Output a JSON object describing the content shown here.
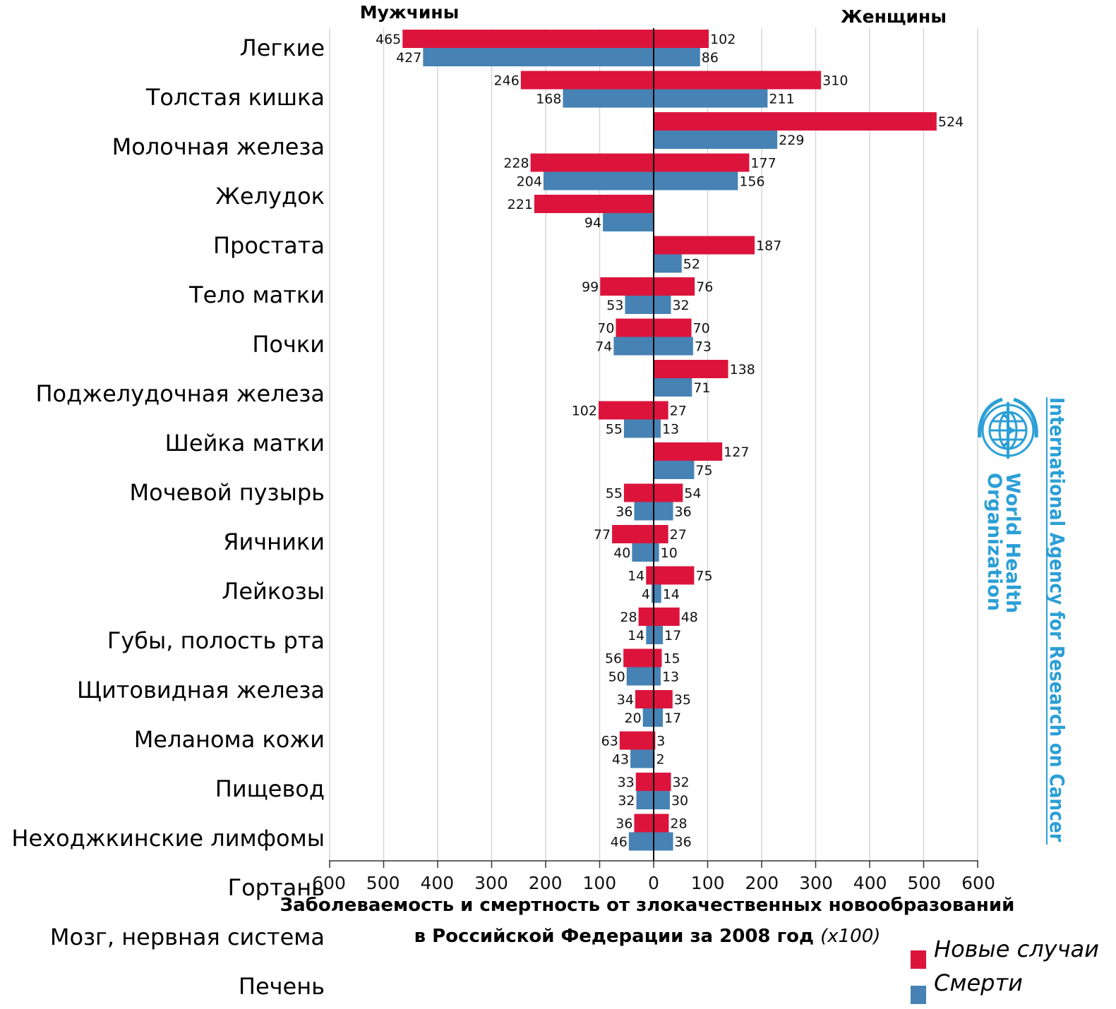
{
  "chart_data": {
    "type": "bar",
    "title_line1": "Заболеваемость и смертность от злокачественных новообразований",
    "title_line2": "в Российской Федерации за 2008 год",
    "title_unit": "(x100)",
    "left_label": "Мужчины",
    "right_label": "Женщины",
    "xlim": [
      -600,
      600
    ],
    "x_ticks": [
      "600",
      "500",
      "400",
      "300",
      "200",
      "100",
      "0",
      "100",
      "200",
      "300",
      "400",
      "500",
      "600"
    ],
    "grid": true,
    "categories": [
      "Легкие",
      "Толстая кишка",
      "Молочная железа",
      "Желудок",
      "Простата",
      "Тело матки",
      "Почки",
      "Поджелудочная железа",
      "Шейка матки",
      "Мочевой пузырь",
      "Яичники",
      "Лейкозы",
      "Губы, полость рта",
      "Щитовидная железа",
      "Меланома кожи",
      "Пищевод",
      "Неходжкинские лимфомы",
      "Гортань",
      "Мозг, нервная система",
      "Печень"
    ],
    "bar_rows": [
      {
        "male_new": 465,
        "male_death": 427,
        "female_new": 102,
        "female_death": 86
      },
      {
        "male_new": 246,
        "male_death": 168,
        "female_new": 310,
        "female_death": 211
      },
      {
        "male_new": null,
        "male_death": null,
        "female_new": 524,
        "female_death": 229
      },
      {
        "male_new": 228,
        "male_death": 204,
        "female_new": 177,
        "female_death": 156
      },
      {
        "male_new": 221,
        "male_death": 94,
        "female_new": null,
        "female_death": null
      },
      {
        "male_new": null,
        "male_death": null,
        "female_new": 187,
        "female_death": 52
      },
      {
        "male_new": 99,
        "male_death": 53,
        "female_new": 76,
        "female_death": 32
      },
      {
        "male_new": 70,
        "male_death": 74,
        "female_new": 70,
        "female_death": 73
      },
      {
        "male_new": null,
        "male_death": null,
        "female_new": 138,
        "female_death": 71
      },
      {
        "male_new": 102,
        "male_death": 55,
        "female_new": 27,
        "female_death": 13
      },
      {
        "male_new": null,
        "male_death": null,
        "female_new": 127,
        "female_death": 75
      },
      {
        "male_new": 55,
        "male_death": 36,
        "female_new": 54,
        "female_death": 36
      },
      {
        "male_new": 77,
        "male_death": 40,
        "female_new": 27,
        "female_death": 10
      },
      {
        "male_new": 14,
        "male_death": 4,
        "female_new": 75,
        "female_death": 14
      },
      {
        "male_new": 28,
        "male_death": 14,
        "female_new": 48,
        "female_death": 17
      },
      {
        "male_new": 56,
        "male_death": 50,
        "female_new": 15,
        "female_death": 13
      },
      {
        "male_new": 34,
        "male_death": 20,
        "female_new": 35,
        "female_death": 17
      },
      {
        "male_new": 63,
        "male_death": 43,
        "female_new": 3,
        "female_death": 2
      },
      {
        "male_new": 33,
        "male_death": 32,
        "female_new": 32,
        "female_death": 30
      },
      {
        "male_new": 36,
        "male_death": 46,
        "female_new": 28,
        "female_death": 36
      }
    ],
    "legend": [
      {
        "name": "Новые случаи",
        "color": "#dc143c"
      },
      {
        "name": "Смерти",
        "color": "#4682b4"
      }
    ],
    "legend_placement": "bottom-right"
  },
  "logo": {
    "who_line1": "World Health",
    "who_line2": "Organization",
    "iarc": "International Agency for Research on Cancer",
    "color": "#2b9fd6"
  }
}
